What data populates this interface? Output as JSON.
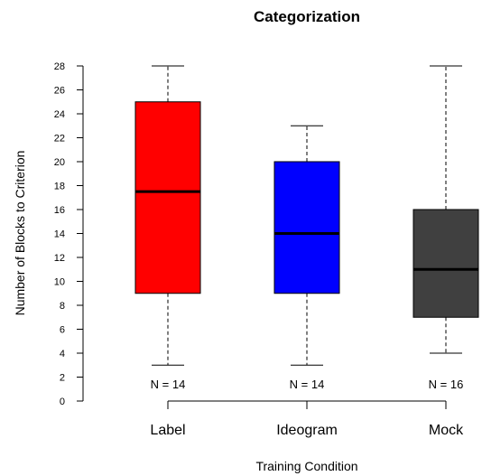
{
  "chart_data": {
    "type": "boxplot",
    "title": "Categorization",
    "xlabel": "Training Condition",
    "ylabel": "Number of Blocks to Criterion",
    "ylim": [
      0,
      28
    ],
    "yticks": [
      0,
      2,
      4,
      6,
      8,
      10,
      12,
      14,
      16,
      18,
      20,
      22,
      24,
      26,
      28
    ],
    "categories": [
      "Label",
      "Ideogram",
      "Mock"
    ],
    "boxes": [
      {
        "category": "Label",
        "min": 3,
        "q1": 9,
        "median": 17.5,
        "q3": 25,
        "max": 28,
        "n_label": "N = 14",
        "color": "#ff0000"
      },
      {
        "category": "Ideogram",
        "min": 3,
        "q1": 9,
        "median": 14,
        "q3": 20,
        "max": 23,
        "n_label": "N = 14",
        "color": "#0000ff"
      },
      {
        "category": "Mock",
        "min": 4,
        "q1": 7,
        "median": 11,
        "q3": 16,
        "max": 28,
        "n_label": "N = 16",
        "color": "#404040"
      }
    ],
    "grid": false,
    "legend": "none"
  }
}
